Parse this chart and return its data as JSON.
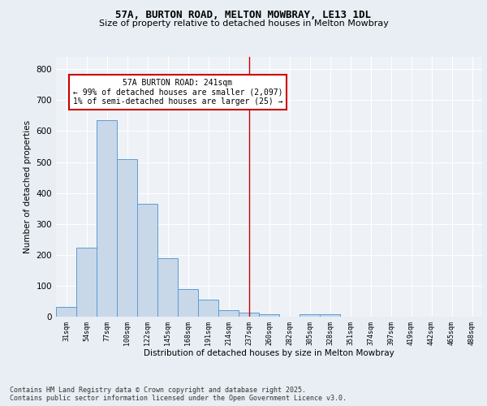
{
  "title_line1": "57A, BURTON ROAD, MELTON MOWBRAY, LE13 1DL",
  "title_line2": "Size of property relative to detached houses in Melton Mowbray",
  "xlabel": "Distribution of detached houses by size in Melton Mowbray",
  "ylabel": "Number of detached properties",
  "footnote": "Contains HM Land Registry data © Crown copyright and database right 2025.\nContains public sector information licensed under the Open Government Licence v3.0.",
  "bin_labels": [
    "31sqm",
    "54sqm",
    "77sqm",
    "100sqm",
    "122sqm",
    "145sqm",
    "168sqm",
    "191sqm",
    "214sqm",
    "237sqm",
    "260sqm",
    "282sqm",
    "305sqm",
    "328sqm",
    "351sqm",
    "374sqm",
    "397sqm",
    "419sqm",
    "442sqm",
    "465sqm",
    "488sqm"
  ],
  "bar_values": [
    32,
    224,
    635,
    510,
    365,
    188,
    88,
    55,
    22,
    13,
    8,
    0,
    7,
    8,
    0,
    0,
    0,
    0,
    0,
    0,
    0
  ],
  "bar_color": "#c8d8e8",
  "bar_edge_color": "#5b9bd5",
  "vline_x_index": 9.0,
  "vline_color": "#cc0000",
  "annotation_text": "57A BURTON ROAD: 241sqm\n← 99% of detached houses are smaller (2,097)\n1% of semi-detached houses are larger (25) →",
  "annotation_box_color": "#ffffff",
  "annotation_box_edge": "#cc0000",
  "ylim": [
    0,
    840
  ],
  "yticks": [
    0,
    100,
    200,
    300,
    400,
    500,
    600,
    700,
    800
  ],
  "bg_color": "#e8eef4",
  "plot_bg_color": "#eef2f7",
  "grid_color": "#ffffff",
  "title_fontsize": 9,
  "subtitle_fontsize": 8,
  "footnote_fontsize": 6
}
